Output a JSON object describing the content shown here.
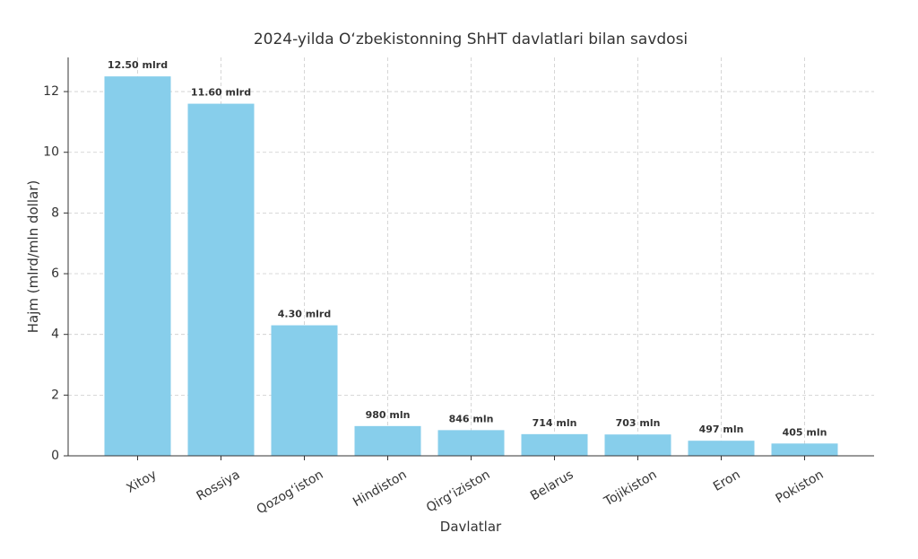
{
  "chart_data": {
    "type": "bar",
    "title": "2024-yilda O‘zbekistonning ShHT davlatlari bilan savdosi",
    "x_label": "Davlatlar",
    "y_label": "Hajm (mlrd/mln dollar)",
    "categories": [
      "Xitoy",
      "Rossiya",
      "Qozog‘iston",
      "Hindiston",
      "Qirg‘iziston",
      "Belarus",
      "Tojikiston",
      "Eron",
      "Pokiston"
    ],
    "values": [
      12.5,
      11.6,
      4.3,
      0.98,
      0.846,
      0.714,
      0.703,
      0.497,
      0.405
    ],
    "value_labels": [
      "12.50 mlrd",
      "11.60 mlrd",
      "4.30 mlrd",
      "980 mln",
      "846 mln",
      "714 mln",
      "703 mln",
      "497 mln",
      "405 mln"
    ],
    "color": "#87ceeb",
    "ylim": [
      0,
      13.125
    ],
    "yticks": [
      0,
      2,
      4,
      6,
      8,
      10,
      12
    ],
    "grid": true
  }
}
